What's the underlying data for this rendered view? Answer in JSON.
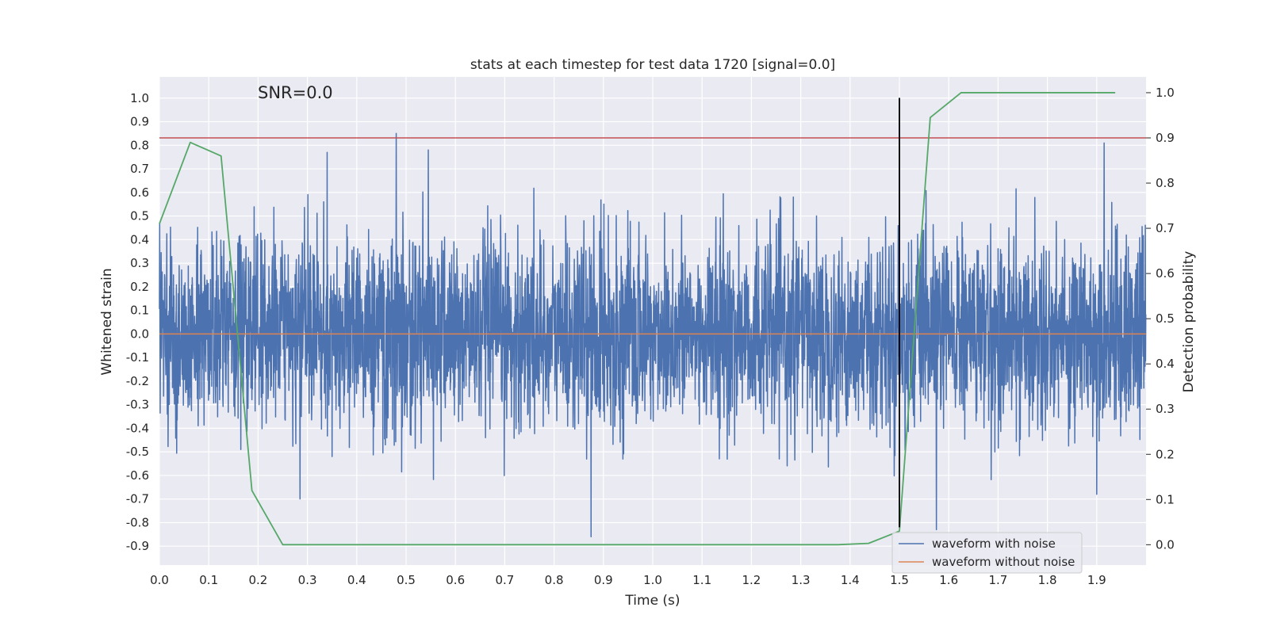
{
  "chart_data": {
    "type": "line",
    "title": "stats at each timestep for test data 1720 [signal=0.0]",
    "annotation": "SNR=0.0",
    "xlabel": "Time (s)",
    "ylabel_left": "Whitened strain",
    "ylabel_right": "Detection probability",
    "xlim": [
      0.0,
      2.0
    ],
    "ylim_left": [
      -0.98,
      1.09
    ],
    "ylim_right": [
      -0.045,
      1.035
    ],
    "x_ticks": [
      "0.0",
      "0.1",
      "0.2",
      "0.3",
      "0.4",
      "0.5",
      "0.6",
      "0.7",
      "0.8",
      "0.9",
      "1.0",
      "1.1",
      "1.2",
      "1.3",
      "1.4",
      "1.5",
      "1.6",
      "1.7",
      "1.8",
      "1.9"
    ],
    "y_left_ticks": [
      "1.0",
      "0.9",
      "0.8",
      "0.7",
      "0.6",
      "0.5",
      "0.4",
      "0.3",
      "0.2",
      "0.1",
      "0.0",
      "-0.1",
      "-0.2",
      "-0.3",
      "-0.4",
      "-0.5",
      "-0.6",
      "-0.7",
      "-0.8",
      "-0.9"
    ],
    "y_right_ticks": [
      "1.0",
      "0.9",
      "0.8",
      "0.7",
      "0.6",
      "0.5",
      "0.4",
      "0.3",
      "0.2",
      "0.1",
      "0.0"
    ],
    "grid": true,
    "legend_position": "bottom-right",
    "series": [
      {
        "name": "waveform with noise",
        "axis": "left",
        "color": "#4c72b0",
        "sample_rate_hz": 2048,
        "amplitude_range": [
          -0.86,
          1.0
        ],
        "notable_peaks": [
          {
            "x": 0.48,
            "y": 0.85
          },
          {
            "x": 0.545,
            "y": 0.78
          },
          {
            "x": 0.34,
            "y": 0.77
          },
          {
            "x": 1.5,
            "y": 1.0
          },
          {
            "x": 1.915,
            "y": 0.81
          },
          {
            "x": 0.875,
            "y": -0.86
          },
          {
            "x": 1.575,
            "y": -0.83
          },
          {
            "x": 0.285,
            "y": -0.7
          },
          {
            "x": 1.9,
            "y": -0.68
          }
        ]
      },
      {
        "name": "waveform without noise",
        "axis": "left",
        "color": "#dd8452",
        "x": [
          0.0,
          2.0
        ],
        "y": [
          0.0,
          0.0
        ]
      },
      {
        "axis": "right",
        "color": "#55a868",
        "x": [
          0.0,
          0.0625,
          0.125,
          0.1875,
          0.25,
          0.3125,
          1.375,
          1.4375,
          1.5,
          1.5625,
          1.625,
          1.9375
        ],
        "y": [
          0.71,
          0.89,
          0.86,
          0.12,
          0.0,
          0.0,
          0.0,
          0.003,
          0.03,
          0.945,
          1.0,
          1.0
        ]
      },
      {
        "axis": "right",
        "color": "#c44e52",
        "type": "hline",
        "y": 0.9
      },
      {
        "color": "#000000",
        "type": "vline",
        "x": 1.5,
        "y_range_left": [
          -0.82,
          1.0
        ]
      }
    ]
  }
}
